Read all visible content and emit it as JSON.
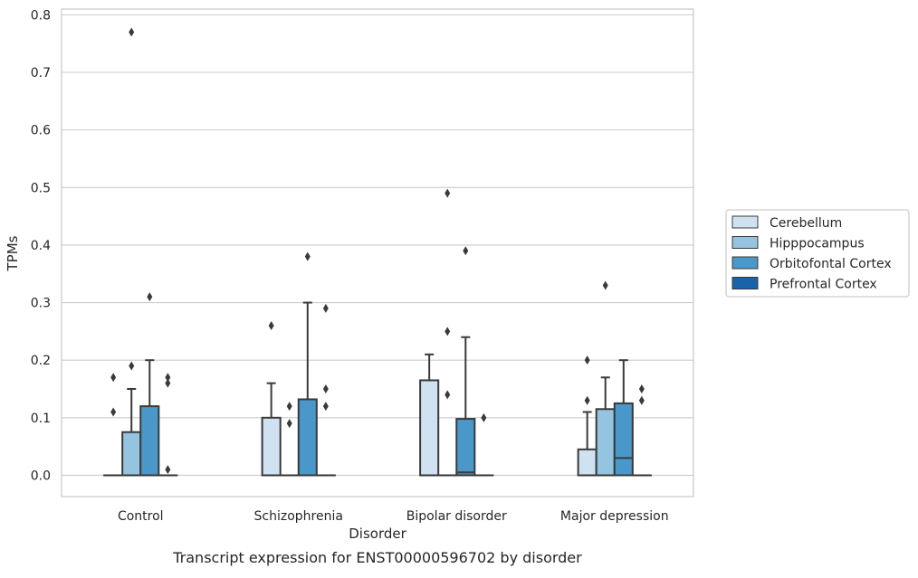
{
  "chart_data": {
    "type": "box",
    "title": "",
    "caption": "Transcript expression for ENST00000596702 by disorder",
    "xlabel": "Disorder",
    "ylabel": "TPMs",
    "ylim": [
      -0.037,
      0.81
    ],
    "yticks": [
      0.0,
      0.1,
      0.2,
      0.3,
      0.4,
      0.5,
      0.6,
      0.7,
      0.8
    ],
    "ytick_labels": [
      "0.0",
      "0.1",
      "0.2",
      "0.3",
      "0.4",
      "0.5",
      "0.6",
      "0.7",
      "0.8"
    ],
    "grid": "horizontal",
    "legend_position": "right",
    "categories": [
      "Control",
      "Schizophrenia",
      "Bipolar disorder",
      "Major depression"
    ],
    "series": [
      {
        "name": "Cerebellum",
        "color": "#d0e1f2",
        "boxes": [
          {
            "q1": 0,
            "median": 0,
            "q3": 0,
            "whislo": 0,
            "whishi": 0,
            "fliers": [
              0.11,
              0.17
            ]
          },
          {
            "q1": 0,
            "median": 0,
            "q3": 0.1,
            "whislo": 0,
            "whishi": 0.16,
            "fliers": [
              0.26
            ]
          },
          {
            "q1": 0,
            "median": 0,
            "q3": 0.165,
            "whislo": 0,
            "whishi": 0.21,
            "fliers": []
          },
          {
            "q1": 0,
            "median": 0,
            "q3": 0.045,
            "whislo": 0,
            "whishi": 0.11,
            "fliers": [
              0.13,
              0.2
            ]
          }
        ]
      },
      {
        "name": "Hipppocampus",
        "color": "#94c4df",
        "boxes": [
          {
            "q1": 0,
            "median": 0,
            "q3": 0.075,
            "whislo": 0,
            "whishi": 0.15,
            "fliers": [
              0.19,
              0.77
            ]
          },
          {
            "q1": 0,
            "median": 0,
            "q3": 0,
            "whislo": 0,
            "whishi": 0,
            "fliers": [
              0.09,
              0.12
            ]
          },
          {
            "q1": 0,
            "median": 0,
            "q3": 0,
            "whislo": 0,
            "whishi": 0,
            "fliers": [
              0.14,
              0.25,
              0.49
            ]
          },
          {
            "q1": 0,
            "median": 0,
            "q3": 0.115,
            "whislo": 0,
            "whishi": 0.17,
            "fliers": [
              0.33
            ]
          }
        ]
      },
      {
        "name": "Orbitofontal Cortex",
        "color": "#4a98c9",
        "boxes": [
          {
            "q1": 0,
            "median": 0,
            "q3": 0.12,
            "whislo": 0,
            "whishi": 0.2,
            "fliers": [
              0.31
            ]
          },
          {
            "q1": 0,
            "median": 0,
            "q3": 0.132,
            "whislo": 0,
            "whishi": 0.3,
            "fliers": [
              0.38
            ]
          },
          {
            "q1": 0,
            "median": 0.005,
            "q3": 0.098,
            "whislo": 0,
            "whishi": 0.24,
            "fliers": [
              0.39
            ]
          },
          {
            "q1": 0,
            "median": 0.03,
            "q3": 0.125,
            "whislo": 0,
            "whishi": 0.2,
            "fliers": []
          }
        ]
      },
      {
        "name": "Prefrontal Cortex",
        "color": "#1764ab",
        "boxes": [
          {
            "q1": 0,
            "median": 0,
            "q3": 0,
            "whislo": 0,
            "whishi": 0,
            "fliers": [
              0.01,
              0.16,
              0.17
            ]
          },
          {
            "q1": 0,
            "median": 0,
            "q3": 0,
            "whislo": 0,
            "whishi": 0,
            "fliers": [
              0.12,
              0.15,
              0.29
            ]
          },
          {
            "q1": 0,
            "median": 0,
            "q3": 0,
            "whislo": 0,
            "whishi": 0,
            "fliers": [
              0.1
            ]
          },
          {
            "q1": 0,
            "median": 0,
            "q3": 0,
            "whislo": 0,
            "whishi": 0,
            "fliers": [
              0.13,
              0.15
            ]
          }
        ]
      }
    ]
  }
}
